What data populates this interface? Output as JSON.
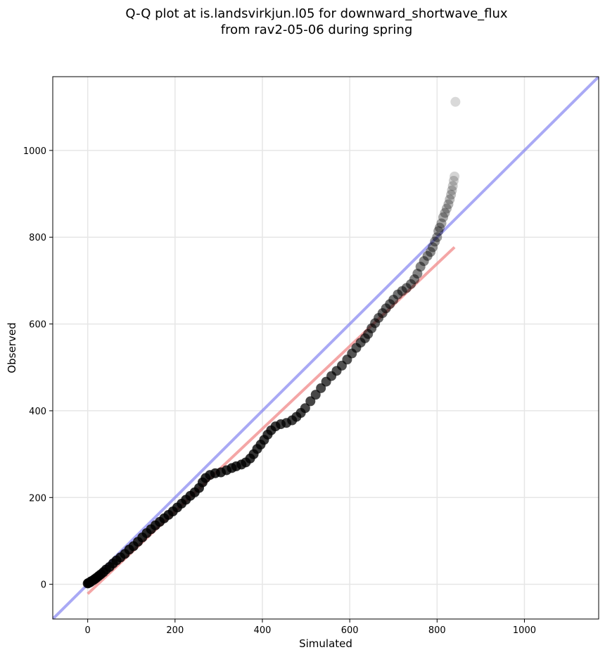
{
  "title_line1": "Q-Q plot at is.landsvirkjun.l05 for downward_shortwave_flux",
  "title_line2": "from rav2-05-06 during spring",
  "chart_data": {
    "type": "scatter",
    "xlabel": "Simulated",
    "ylabel": "Observed",
    "xlim": [
      -80,
      1170
    ],
    "ylim": [
      -80,
      1170
    ],
    "xticks": [
      0,
      200,
      400,
      600,
      800,
      1000
    ],
    "yticks": [
      0,
      200,
      400,
      600,
      800,
      1000
    ],
    "grid": true,
    "reference_line": {
      "name": "1:1 line",
      "color": "#7b7bf0",
      "x": [
        -80,
        1170
      ],
      "y": [
        -80,
        1170
      ]
    },
    "fit_line": {
      "name": "linear fit",
      "color": "#f08080",
      "x": [
        0,
        840
      ],
      "y": [
        -22,
        777
      ]
    },
    "point_color": "#000000",
    "points": [
      [
        0,
        2
      ],
      [
        2,
        3
      ],
      [
        4,
        4
      ],
      [
        6,
        5
      ],
      [
        8,
        7
      ],
      [
        12,
        9
      ],
      [
        16,
        12
      ],
      [
        20,
        15
      ],
      [
        25,
        19
      ],
      [
        30,
        23
      ],
      [
        36,
        28
      ],
      [
        42,
        34
      ],
      [
        50,
        40
      ],
      [
        58,
        48
      ],
      [
        66,
        55
      ],
      [
        75,
        62
      ],
      [
        85,
        70
      ],
      [
        95,
        80
      ],
      [
        105,
        88
      ],
      [
        115,
        98
      ],
      [
        125,
        108
      ],
      [
        135,
        118
      ],
      [
        145,
        127
      ],
      [
        155,
        136
      ],
      [
        165,
        144
      ],
      [
        175,
        152
      ],
      [
        185,
        160
      ],
      [
        195,
        168
      ],
      [
        205,
        177
      ],
      [
        215,
        186
      ],
      [
        225,
        195
      ],
      [
        235,
        204
      ],
      [
        245,
        212
      ],
      [
        255,
        222
      ],
      [
        263,
        235
      ],
      [
        270,
        245
      ],
      [
        280,
        252
      ],
      [
        292,
        256
      ],
      [
        305,
        258
      ],
      [
        318,
        263
      ],
      [
        330,
        268
      ],
      [
        340,
        272
      ],
      [
        352,
        276
      ],
      [
        362,
        281
      ],
      [
        372,
        290
      ],
      [
        380,
        300
      ],
      [
        388,
        312
      ],
      [
        396,
        322
      ],
      [
        404,
        333
      ],
      [
        412,
        345
      ],
      [
        420,
        355
      ],
      [
        430,
        364
      ],
      [
        442,
        369
      ],
      [
        455,
        372
      ],
      [
        468,
        378
      ],
      [
        478,
        386
      ],
      [
        488,
        395
      ],
      [
        498,
        406
      ],
      [
        510,
        422
      ],
      [
        522,
        437
      ],
      [
        534,
        452
      ],
      [
        546,
        467
      ],
      [
        558,
        480
      ],
      [
        570,
        492
      ],
      [
        582,
        504
      ],
      [
        594,
        518
      ],
      [
        605,
        532
      ],
      [
        615,
        545
      ],
      [
        625,
        557
      ],
      [
        635,
        567
      ],
      [
        642,
        577
      ],
      [
        650,
        590
      ],
      [
        658,
        602
      ],
      [
        666,
        614
      ],
      [
        675,
        625
      ],
      [
        683,
        636
      ],
      [
        692,
        646
      ],
      [
        700,
        656
      ],
      [
        710,
        668
      ],
      [
        720,
        676
      ],
      [
        730,
        683
      ],
      [
        740,
        692
      ],
      [
        748,
        703
      ],
      [
        755,
        716
      ],
      [
        762,
        732
      ],
      [
        770,
        745
      ],
      [
        778,
        757
      ],
      [
        785,
        766
      ],
      [
        790,
        777
      ],
      [
        795,
        790
      ],
      [
        800,
        800
      ],
      [
        803,
        814
      ],
      [
        806,
        822
      ],
      [
        810,
        832
      ],
      [
        814,
        846
      ],
      [
        818,
        856
      ],
      [
        822,
        866
      ],
      [
        826,
        876
      ],
      [
        829,
        887
      ],
      [
        832,
        898
      ],
      [
        834,
        908
      ],
      [
        836,
        918
      ],
      [
        838,
        930
      ],
      [
        840,
        940
      ],
      [
        842,
        1112
      ]
    ]
  }
}
